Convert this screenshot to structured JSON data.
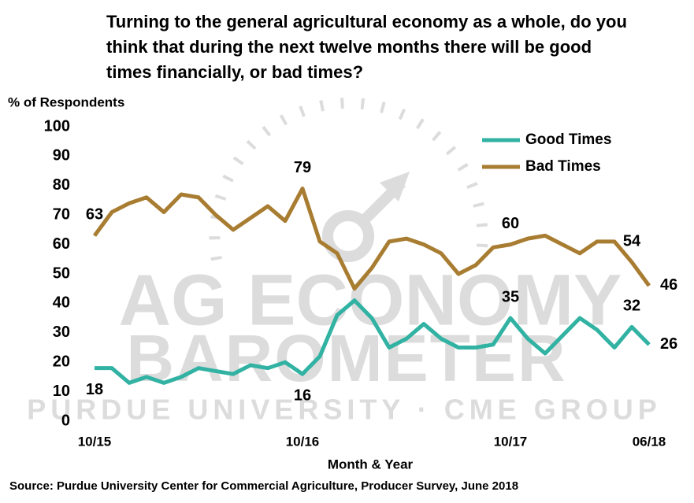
{
  "chart_data": {
    "type": "line",
    "title": [
      "Turning to the general agricultural economy as a whole, do you",
      "think that during the next twelve months there will be good",
      "times financially, or bad times?"
    ],
    "y_label": "% of Respondents",
    "x_label": "Month & Year",
    "source": "Source: Purdue University Center for Commercial Agriculture, Producer Survey, June 2018",
    "watermark": [
      "AG ECONOMY",
      "BAROMETER",
      "PURDUE UNIVERSITY · CME GROUP"
    ],
    "categories": [
      "10/15",
      null,
      null,
      null,
      null,
      null,
      null,
      null,
      null,
      null,
      null,
      null,
      "10/16",
      null,
      null,
      null,
      null,
      null,
      null,
      null,
      null,
      null,
      null,
      null,
      "10/17",
      null,
      null,
      null,
      null,
      null,
      null,
      null,
      "06/18"
    ],
    "series": [
      {
        "name": "Good Times",
        "color": "#31b2a2",
        "values": [
          18,
          18,
          13,
          15,
          13,
          15,
          18,
          17,
          16,
          19,
          18,
          20,
          16,
          22,
          36,
          41,
          35,
          25,
          28,
          33,
          28,
          25,
          25,
          26,
          35,
          28,
          23,
          29,
          35,
          31,
          25,
          32,
          26
        ]
      },
      {
        "name": "Bad Times",
        "color": "#a87d32",
        "values": [
          63,
          71,
          74,
          76,
          71,
          77,
          76,
          70,
          65,
          69,
          73,
          68,
          79,
          61,
          57,
          45,
          52,
          61,
          62,
          60,
          57,
          50,
          53,
          59,
          60,
          62,
          63,
          60,
          57,
          61,
          61,
          54,
          46
        ]
      }
    ],
    "labeled_points": [
      0,
      12,
      24,
      31,
      32
    ],
    "ylim": [
      0,
      100
    ],
    "yticks": [
      0,
      10,
      20,
      30,
      40,
      50,
      60,
      70,
      80,
      90,
      100
    ],
    "grid": false,
    "legend": "upper right"
  }
}
